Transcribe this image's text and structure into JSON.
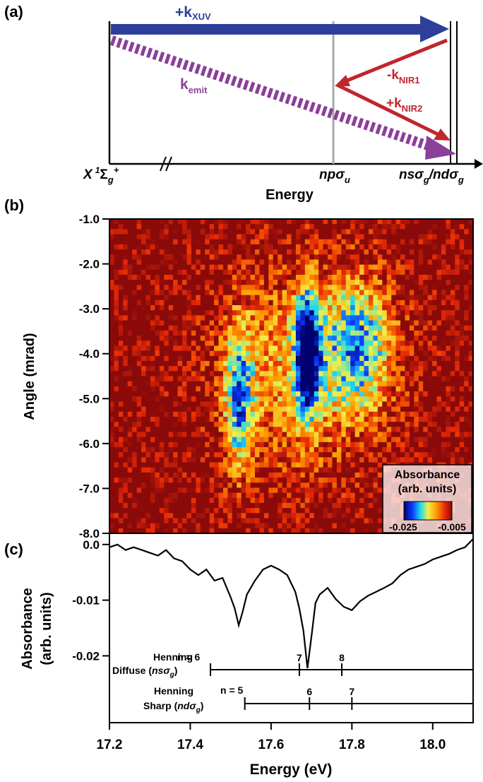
{
  "panel_labels": {
    "a": "(a)",
    "b": "(b)",
    "c": "(c)"
  },
  "colors": {
    "xuv": "#2e3f9a",
    "nir": "#c0262d",
    "emit": "#8a3f99",
    "state_line": "#aaaaaa"
  },
  "panel_a": {
    "k_xuv": {
      "sign": "+k",
      "sub": "XUV"
    },
    "k_emit": {
      "sign": "k",
      "sub": "emit"
    },
    "k_nir1": {
      "sign": "-k",
      "sub": "NIR1"
    },
    "k_nir2": {
      "sign": "+k",
      "sub": "NIR2"
    },
    "ground_state": {
      "X": "X",
      "sup1": "1",
      "Sigma": "Σ",
      "sub": "g",
      "sup2": "+"
    },
    "state_np": {
      "main": "npσ",
      "sub": "u"
    },
    "state_ns_nd": {
      "a": "nsσ",
      "a_sub": "g",
      "sep": "/",
      "b": "ndσ",
      "b_sub": "g"
    },
    "xlabel": "Energy"
  },
  "panel_b": {
    "ylabel": "Angle (mrad)",
    "yticks": [
      "-1.0",
      "-2.0",
      "-3.0",
      "-4.0",
      "-5.0",
      "-6.0",
      "-7.0",
      "-8.0"
    ],
    "colorbar": {
      "title1": "Absorbance",
      "title2": "(arb. units)",
      "min_label": "-0.025",
      "max_label": "-0.005"
    }
  },
  "chart_data": [
    {
      "type": "heatmap",
      "title": "",
      "xlabel": "Energy (eV)",
      "ylabel": "Angle (mrad)",
      "xlim": [
        17.2,
        18.1
      ],
      "ylim": [
        -8.0,
        -1.0
      ],
      "value_range": [
        -0.025,
        -0.005
      ],
      "features": [
        {
          "center_energy": 17.69,
          "center_angle": -4.0,
          "min_value": -0.025
        },
        {
          "center_energy": 17.52,
          "center_angle": -5.0,
          "min_value": -0.02
        },
        {
          "center_energy": 17.82,
          "center_angle": -3.8,
          "min_value": -0.018
        }
      ]
    },
    {
      "type": "line",
      "title": "",
      "xlabel": "Energy (eV)",
      "ylabel": "Absorbance (arb. units)",
      "xlim": [
        17.2,
        18.1
      ],
      "ylim": [
        -0.032,
        0.002
      ],
      "xticks": [
        "17.2",
        "17.4",
        "17.6",
        "17.8",
        "18.0"
      ],
      "yticks": [
        "0.0",
        "-0.01",
        "-0.02"
      ],
      "x": [
        17.2,
        17.22,
        17.24,
        17.26,
        17.28,
        17.3,
        17.32,
        17.34,
        17.36,
        17.38,
        17.4,
        17.42,
        17.44,
        17.46,
        17.48,
        17.5,
        17.51,
        17.52,
        17.53,
        17.54,
        17.56,
        17.58,
        17.6,
        17.62,
        17.64,
        17.66,
        17.67,
        17.68,
        17.69,
        17.7,
        17.71,
        17.72,
        17.74,
        17.76,
        17.78,
        17.8,
        17.82,
        17.84,
        17.86,
        17.88,
        17.9,
        17.92,
        17.94,
        17.96,
        17.98,
        18.0,
        18.02,
        18.04,
        18.06,
        18.08,
        18.1
      ],
      "y": [
        -0.0005,
        0.0,
        -0.001,
        -0.0005,
        -0.001,
        -0.0015,
        -0.002,
        -0.001,
        -0.0025,
        -0.003,
        -0.0045,
        -0.0055,
        -0.0045,
        -0.0065,
        -0.006,
        -0.0095,
        -0.0115,
        -0.0145,
        -0.012,
        -0.009,
        -0.0065,
        -0.0045,
        -0.0038,
        -0.0045,
        -0.0055,
        -0.0085,
        -0.0115,
        -0.0155,
        -0.0222,
        -0.0165,
        -0.0105,
        -0.009,
        -0.0078,
        -0.0098,
        -0.0112,
        -0.0118,
        -0.0102,
        -0.0092,
        -0.0085,
        -0.0078,
        -0.007,
        -0.0055,
        -0.0045,
        -0.004,
        -0.0035,
        -0.0027,
        -0.0022,
        -0.0017,
        -0.001,
        -0.0005,
        0.001
      ]
    }
  ],
  "henning": {
    "diffuse": {
      "line1": "Henning",
      "line2": "Diffuse (",
      "state": "nsσ",
      "state_sub": "g",
      "close": ")",
      "n_label": "n = 6",
      "ticks": [
        {
          "n": "7",
          "energy": 17.67
        },
        {
          "n": "8",
          "energy": 17.775
        }
      ],
      "start_energy": 17.45
    },
    "sharp": {
      "line1": "Henning",
      "line2": "Sharp (",
      "state": "ndσ",
      "state_sub": "g",
      "close": ")",
      "n_label": "n = 5",
      "ticks": [
        {
          "n": "6",
          "energy": 17.695
        },
        {
          "n": "7",
          "energy": 17.8
        }
      ],
      "start_energy": 17.535
    }
  }
}
